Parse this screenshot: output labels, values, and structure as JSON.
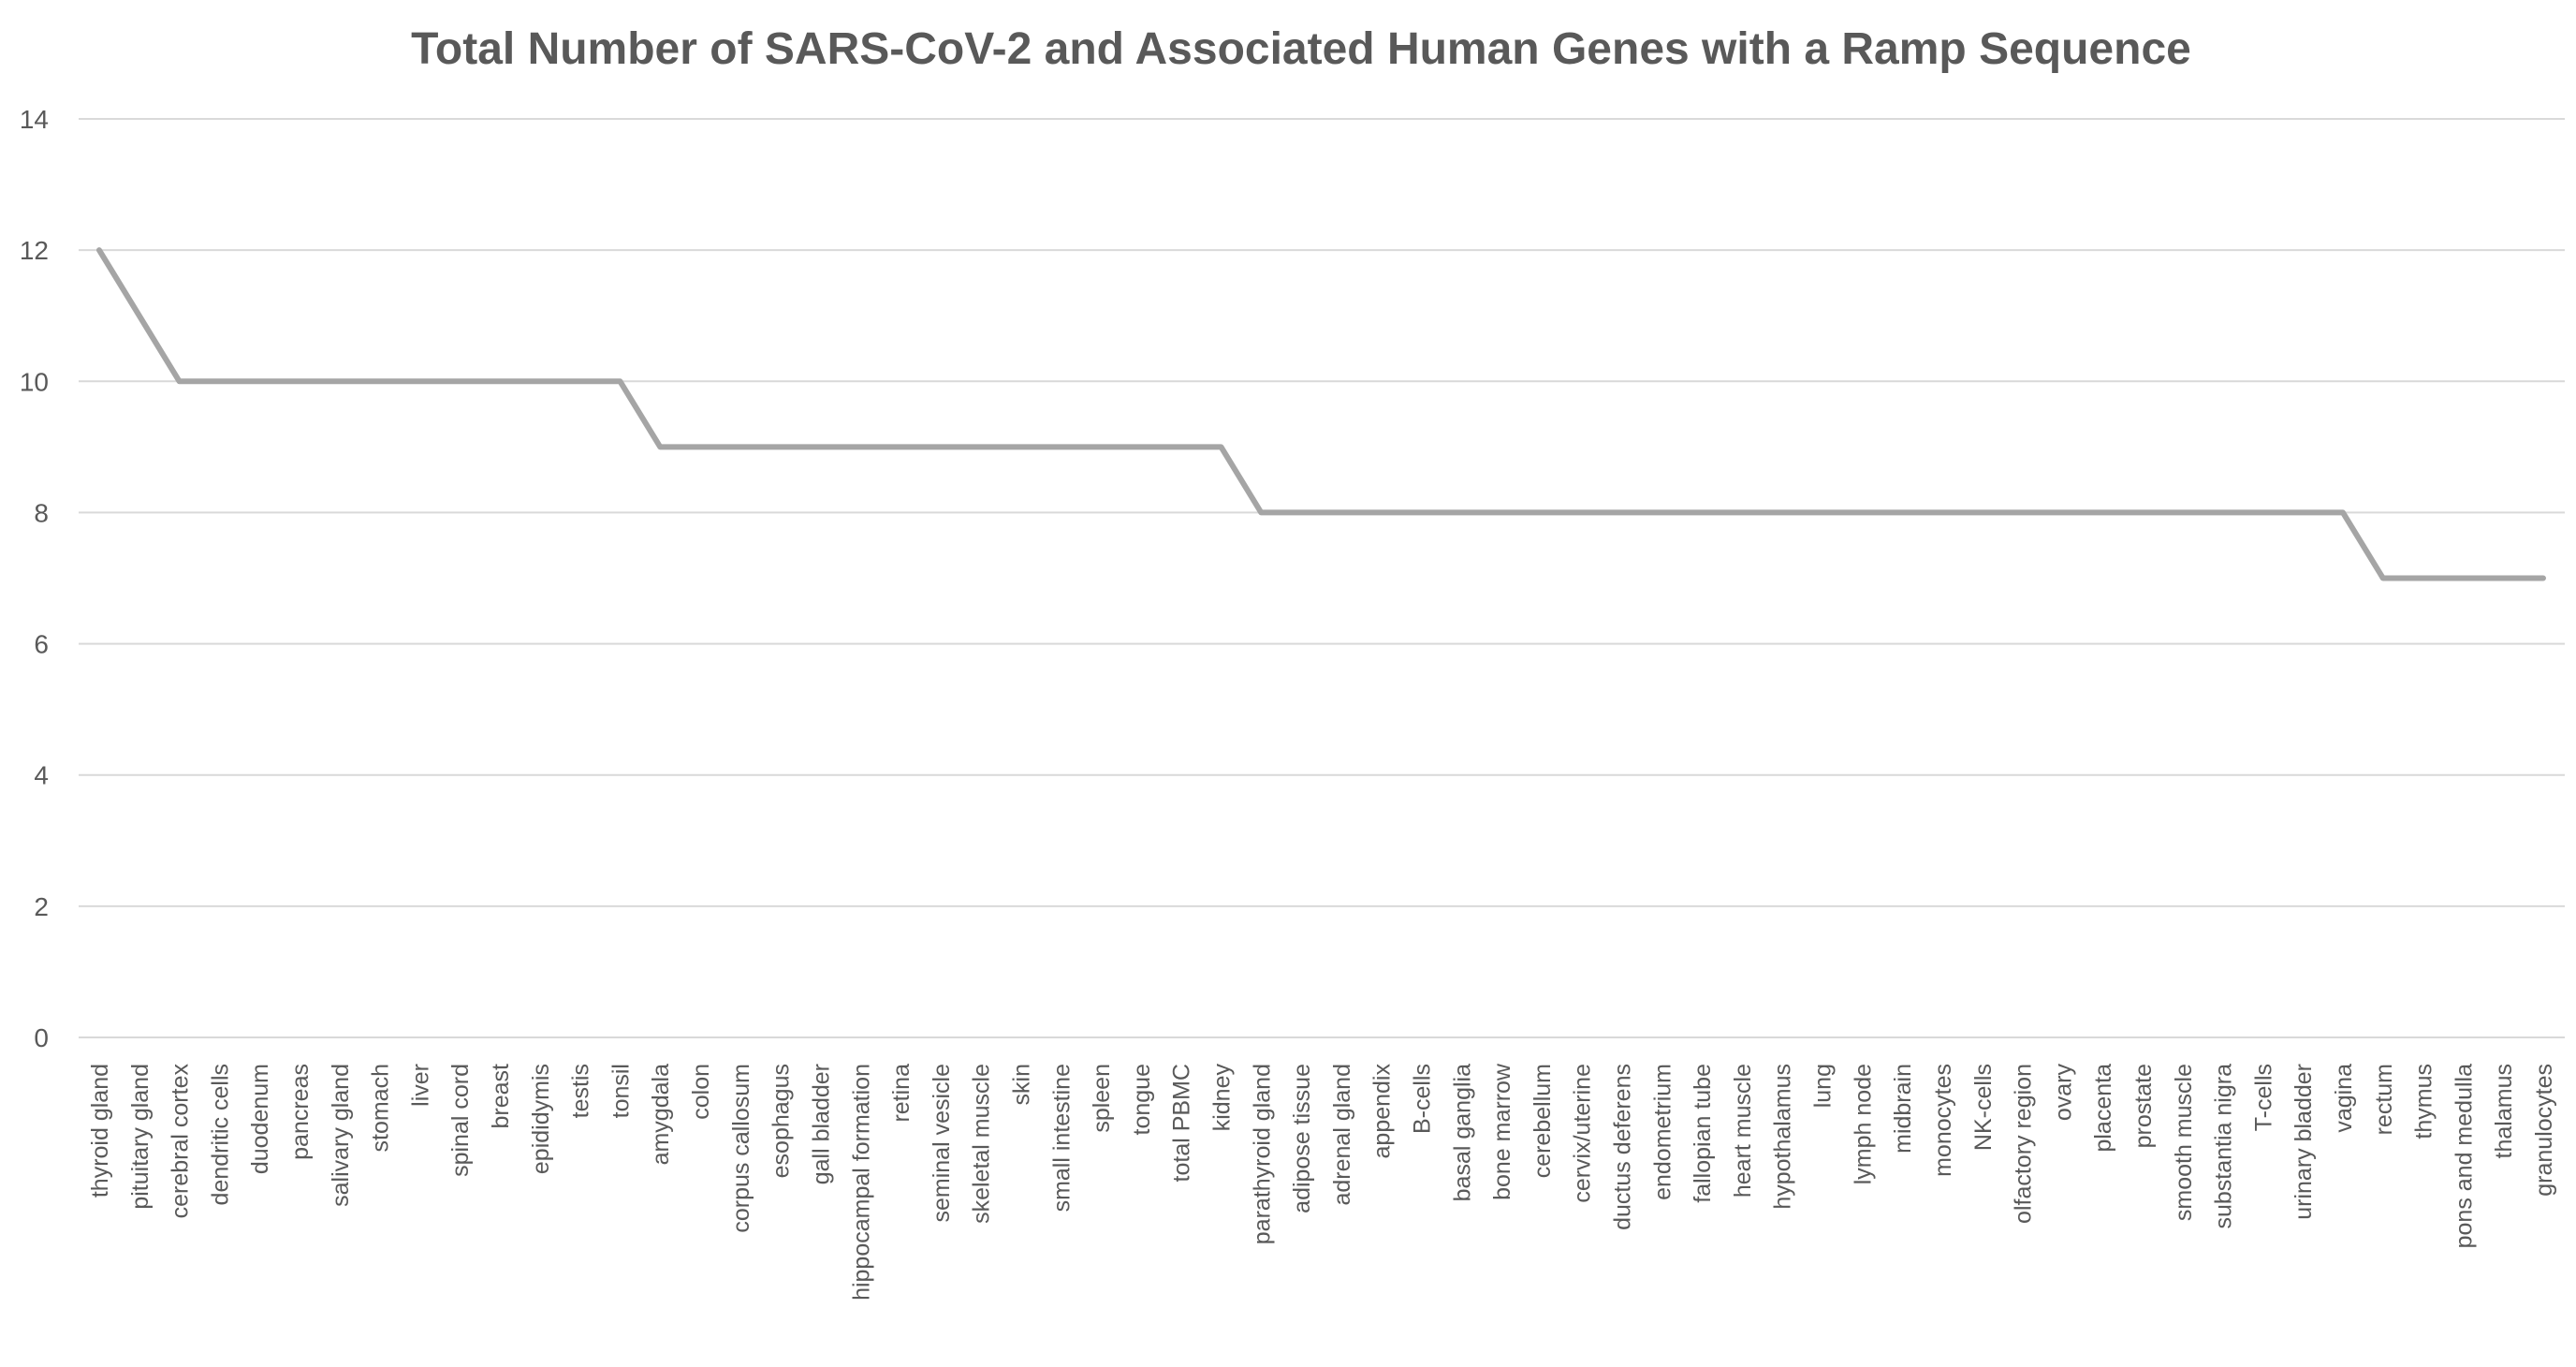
{
  "chart_data": {
    "type": "line",
    "title": "Total Number of SARS-CoV-2 and Associated Human Genes with a Ramp Sequence",
    "xlabel": "",
    "ylabel": "",
    "ylim": [
      0,
      14
    ],
    "yticks": [
      "0",
      "2",
      "4",
      "6",
      "8",
      "10",
      "12",
      "14"
    ],
    "grid": true,
    "legend": "none",
    "line_color": "#a5a5a5",
    "grid_color": "#d9d9d9",
    "text_color": "#595959",
    "categories": [
      "thyroid gland",
      "pituitary gland",
      "cerebral cortex",
      "dendritic cells",
      "duodenum",
      "pancreas",
      "salivary gland",
      "stomach",
      "liver",
      "spinal cord",
      "breast",
      "epididymis",
      "testis",
      "tonsil",
      "amygdala",
      "colon",
      "corpus callosum",
      "esophagus",
      "gall bladder",
      "hippocampal formation",
      "retina",
      "seminal vesicle",
      "skeletal muscle",
      "skin",
      "small intestine",
      "spleen",
      "tongue",
      "total PBMC",
      "kidney",
      "parathyroid gland",
      "adipose tissue",
      "adrenal gland",
      "appendix",
      "B-cells",
      "basal ganglia",
      "bone marrow",
      "cerebellum",
      "cervix/uterine",
      "ductus deferens",
      "endometrium",
      "fallopian tube",
      "heart muscle",
      "hypothalamus",
      "lung",
      "lymph node",
      "midbrain",
      "monocytes",
      "NK-cells",
      "olfactory region",
      "ovary",
      "placenta",
      "prostate",
      "smooth muscle",
      "substantia nigra",
      "T-cells",
      "urinary bladder",
      "vagina",
      "rectum",
      "thymus",
      "pons and medulla",
      "thalamus",
      "granulocytes"
    ],
    "series": [
      {
        "values": [
          12,
          11,
          10,
          10,
          10,
          10,
          10,
          10,
          10,
          10,
          10,
          10,
          10,
          10,
          9,
          9,
          9,
          9,
          9,
          9,
          9,
          9,
          9,
          9,
          9,
          9,
          9,
          9,
          9,
          8,
          8,
          8,
          8,
          8,
          8,
          8,
          8,
          8,
          8,
          8,
          8,
          8,
          8,
          8,
          8,
          8,
          8,
          8,
          8,
          8,
          8,
          8,
          8,
          8,
          8,
          8,
          8,
          7,
          7,
          7,
          7,
          7
        ]
      }
    ]
  }
}
